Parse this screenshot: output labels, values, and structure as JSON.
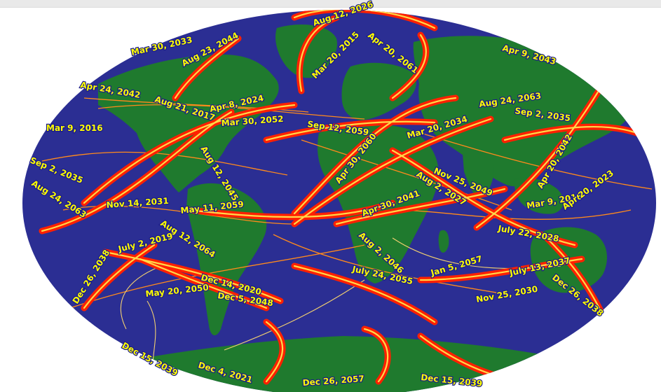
{
  "colors": {
    "ocean": "#2b2e93",
    "land": "#1f7a2e",
    "path_band": "#ff2000",
    "path_core": "#ffd84a",
    "label_text": "#ffff00"
  },
  "eclipse_labels": [
    "Aug 12, 2026",
    "Mar 30, 2033",
    "Aug 23, 2044",
    "Mar 20, 2015",
    "Apr 20, 2061",
    "Apr 9, 2043",
    "Apr 24, 2042",
    "Aug 21, 2017",
    "Apr 8, 2024",
    "Aug 24, 2063",
    "Sep 2, 2035",
    "Mar 9, 2016",
    "Mar 30, 2052",
    "Sep 12, 2059",
    "Mar 20, 2034",
    "Aug 12, 2045",
    "Apr 30, 2060",
    "Apr 20, 2042",
    "Sep 2, 2035",
    "Nov 25, 2049",
    "Aug 2, 2027",
    "Aug 24, 2063",
    "Nov 14, 2031",
    "Apr 30, 2041",
    "Mar 9, 2016",
    "Apr 20, 2023",
    "May 11, 2059",
    "Aug 12, 2064",
    "July 2, 2019",
    "July 22, 2028",
    "Dec 26, 2038",
    "Aug 2, 2046",
    "Jan 5, 2057",
    "July 13, 2037",
    "July 24, 2055",
    "Dec 14, 2020",
    "Dec 5, 2048",
    "Nov 25, 2030",
    "Dec 26, 2038",
    "May 20, 2050",
    "Dec 15, 2039",
    "Dec 4, 2021",
    "Dec 26, 2057",
    "Dec 15, 2039"
  ]
}
